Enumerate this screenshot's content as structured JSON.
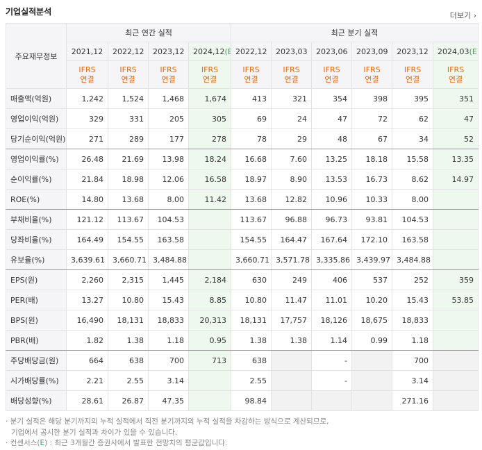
{
  "header": {
    "title": "기업실적분석",
    "more": "더보기"
  },
  "table": {
    "corner": "주요재무정보",
    "groups": [
      {
        "label": "최근 연간 실적",
        "span": 4
      },
      {
        "label": "최근 분기 실적",
        "span": 6
      }
    ],
    "columns": [
      {
        "date": "2021,12",
        "standard": "IFRS",
        "basis": "연결"
      },
      {
        "date": "2022,12",
        "standard": "IFRS",
        "basis": "연결"
      },
      {
        "date": "2023,12",
        "standard": "IFRS",
        "basis": "연결"
      },
      {
        "date": "2024,12",
        "estimate": "(E)",
        "standard": "IFRS",
        "basis": "연결"
      },
      {
        "date": "2022,12",
        "standard": "IFRS",
        "basis": "연결"
      },
      {
        "date": "2023,03",
        "standard": "IFRS",
        "basis": "연결"
      },
      {
        "date": "2023,06",
        "standard": "IFRS",
        "basis": "연결"
      },
      {
        "date": "2023,09",
        "standard": "IFRS",
        "basis": "연결"
      },
      {
        "date": "2023,12",
        "standard": "IFRS",
        "basis": "연결"
      },
      {
        "date": "2024,03",
        "estimate": "(E)",
        "standard": "IFRS",
        "basis": "연결"
      }
    ],
    "rows": [
      {
        "label": "매출액(억원)",
        "cells": [
          "1,242",
          "1,524",
          "1,468",
          "1,674",
          "413",
          "321",
          "354",
          "398",
          "395",
          "351"
        ]
      },
      {
        "label": "영업이익(억원)",
        "cells": [
          "329",
          "331",
          "205",
          "305",
          "69",
          "24",
          "47",
          "72",
          "62",
          "47"
        ]
      },
      {
        "label": "당기순이익(억원)",
        "group_end": true,
        "cells": [
          "271",
          "289",
          "177",
          "278",
          "78",
          "29",
          "48",
          "67",
          "34",
          "52"
        ]
      },
      {
        "label": "영업이익률(%)",
        "cells": [
          "26.48",
          "21.69",
          "13.98",
          "18.24",
          "16.68",
          "7.60",
          "13.25",
          "18.18",
          "15.58",
          "13.35"
        ]
      },
      {
        "label": "순이익률(%)",
        "cells": [
          "21.84",
          "18.98",
          "12.06",
          "16.58",
          "18.97",
          "8.90",
          "13.53",
          "16.73",
          "8.62",
          "14.97"
        ]
      },
      {
        "label": "ROE(%)",
        "group_end": true,
        "cells": [
          "14.80",
          "13.68",
          "8.00",
          "11.42",
          "13.68",
          "12.82",
          "10.96",
          "10.33",
          "8.00",
          null
        ]
      },
      {
        "label": "부채비율(%)",
        "cells": [
          "121.12",
          "113.67",
          "104.53",
          null,
          "113.67",
          "96.88",
          "96.73",
          "93.81",
          "104.53",
          null
        ]
      },
      {
        "label": "당좌비율(%)",
        "cells": [
          "164.49",
          "154.55",
          "163.58",
          null,
          "154.55",
          "164.47",
          "167.64",
          "172.10",
          "163.58",
          null
        ]
      },
      {
        "label": "유보율(%)",
        "group_end": true,
        "cells": [
          "3,639.61",
          "3,660.71",
          "3,484.88",
          null,
          "3,660.71",
          "3,571.78",
          "3,335.86",
          "3,439.97",
          "3,484.88",
          null
        ]
      },
      {
        "label": "EPS(원)",
        "cells": [
          "2,260",
          "2,315",
          "1,445",
          "2,184",
          "630",
          "249",
          "406",
          "537",
          "252",
          "359"
        ]
      },
      {
        "label": "PER(배)",
        "cells": [
          "13.27",
          "10.80",
          "15.43",
          "8.85",
          "10.80",
          "11.47",
          "11.01",
          "10.20",
          "15.43",
          "53.85"
        ]
      },
      {
        "label": "BPS(원)",
        "cells": [
          "16,490",
          "18,131",
          "18,833",
          "20,313",
          "18,131",
          "17,757",
          "18,126",
          "18,675",
          "18,833",
          null
        ]
      },
      {
        "label": "PBR(배)",
        "group_end": true,
        "cells": [
          "1.82",
          "1.38",
          "1.18",
          "0.95",
          "1.38",
          "1.38",
          "1.14",
          "0.99",
          "1.18",
          null
        ]
      },
      {
        "label": "주당배당금(원)",
        "dividend": true,
        "cells": [
          "664",
          "638",
          "700",
          "713",
          "638",
          null,
          "-",
          null,
          "700",
          null
        ]
      },
      {
        "label": "시가배당률(%)",
        "dividend": true,
        "cells": [
          "2.21",
          "2.55",
          "3.14",
          null,
          "2.55",
          null,
          "-",
          null,
          "3.14",
          null
        ]
      },
      {
        "label": "배당성향(%)",
        "dividend": true,
        "cells": [
          "28.61",
          "26.87",
          "47.35",
          null,
          "98.84",
          null,
          null,
          null,
          "271.16",
          null
        ]
      }
    ]
  },
  "notes": [
    {
      "text": "분기 실적은 해당 분기까지의 누적 실적에서 직전 분기까지의 누적 실적을 차감하는 방식으로 계산되므로,"
    },
    {
      "text": "기업에서 공시한 분기 실적과 차이가 있을 수 있습니다."
    },
    {
      "before": "컨센서스(",
      "mark": "E",
      "after": ") : 최근 3개월간 증권사에서 발표한 전망치의 평균값입니다."
    }
  ]
}
